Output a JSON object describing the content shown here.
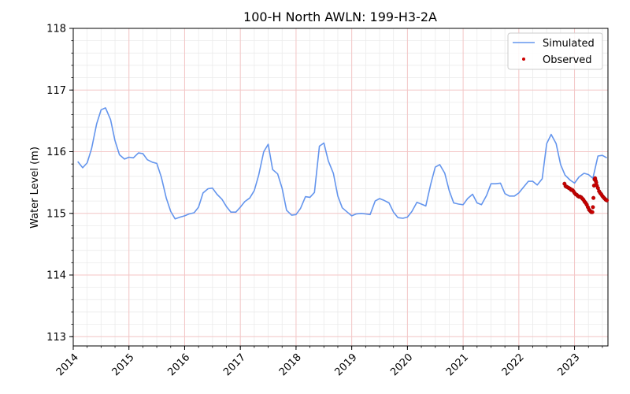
{
  "chart_data": {
    "type": "line",
    "title": "100-H North AWLN: 199-H3-2A",
    "xlabel": "",
    "ylabel": "Water Level (m)",
    "xlim": [
      2014.0,
      2023.6
    ],
    "ylim": [
      112.85,
      118.0
    ],
    "x_ticks": [
      "2014",
      "2015",
      "2016",
      "2017",
      "2018",
      "2019",
      "2020",
      "2021",
      "2022",
      "2023"
    ],
    "y_ticks": [
      113,
      114,
      115,
      116,
      117,
      118
    ],
    "grid": true,
    "legend_position": "top-right",
    "colors": {
      "simulated": "#6495ED",
      "observed": "#cc0000",
      "major_grid": "#f4c6c6",
      "minor_grid": "#ebebeb"
    },
    "series": [
      {
        "name": "Simulated",
        "style": "line",
        "points": [
          [
            2014.08,
            115.84
          ],
          [
            2014.17,
            115.74
          ],
          [
            2014.25,
            115.82
          ],
          [
            2014.33,
            116.05
          ],
          [
            2014.42,
            116.45
          ],
          [
            2014.5,
            116.68
          ],
          [
            2014.58,
            116.71
          ],
          [
            2014.67,
            116.52
          ],
          [
            2014.75,
            116.18
          ],
          [
            2014.83,
            115.95
          ],
          [
            2014.92,
            115.88
          ],
          [
            2015.0,
            115.91
          ],
          [
            2015.08,
            115.9
          ],
          [
            2015.17,
            115.98
          ],
          [
            2015.25,
            115.97
          ],
          [
            2015.33,
            115.87
          ],
          [
            2015.42,
            115.83
          ],
          [
            2015.5,
            115.81
          ],
          [
            2015.58,
            115.59
          ],
          [
            2015.67,
            115.25
          ],
          [
            2015.75,
            115.03
          ],
          [
            2015.83,
            114.91
          ],
          [
            2015.92,
            114.94
          ],
          [
            2016.0,
            114.96
          ],
          [
            2016.08,
            114.99
          ],
          [
            2016.17,
            115.01
          ],
          [
            2016.25,
            115.1
          ],
          [
            2016.33,
            115.33
          ],
          [
            2016.42,
            115.4
          ],
          [
            2016.5,
            115.41
          ],
          [
            2016.58,
            115.31
          ],
          [
            2016.67,
            115.23
          ],
          [
            2016.75,
            115.11
          ],
          [
            2016.83,
            115.02
          ],
          [
            2016.92,
            115.02
          ],
          [
            2017.0,
            115.1
          ],
          [
            2017.08,
            115.19
          ],
          [
            2017.17,
            115.25
          ],
          [
            2017.25,
            115.37
          ],
          [
            2017.33,
            115.62
          ],
          [
            2017.42,
            116.0
          ],
          [
            2017.5,
            116.12
          ],
          [
            2017.58,
            115.71
          ],
          [
            2017.67,
            115.64
          ],
          [
            2017.75,
            115.41
          ],
          [
            2017.83,
            115.05
          ],
          [
            2017.92,
            114.97
          ],
          [
            2018.0,
            114.98
          ],
          [
            2018.08,
            115.08
          ],
          [
            2018.17,
            115.27
          ],
          [
            2018.25,
            115.26
          ],
          [
            2018.33,
            115.34
          ],
          [
            2018.42,
            116.09
          ],
          [
            2018.5,
            116.14
          ],
          [
            2018.58,
            115.85
          ],
          [
            2018.67,
            115.65
          ],
          [
            2018.75,
            115.28
          ],
          [
            2018.83,
            115.09
          ],
          [
            2018.92,
            115.02
          ],
          [
            2019.0,
            114.96
          ],
          [
            2019.08,
            114.99
          ],
          [
            2019.17,
            115.0
          ],
          [
            2019.25,
            114.99
          ],
          [
            2019.33,
            114.98
          ],
          [
            2019.42,
            115.2
          ],
          [
            2019.5,
            115.24
          ],
          [
            2019.58,
            115.21
          ],
          [
            2019.67,
            115.17
          ],
          [
            2019.75,
            115.02
          ],
          [
            2019.83,
            114.93
          ],
          [
            2019.92,
            114.92
          ],
          [
            2020.0,
            114.94
          ],
          [
            2020.08,
            115.03
          ],
          [
            2020.17,
            115.18
          ],
          [
            2020.25,
            115.15
          ],
          [
            2020.33,
            115.12
          ],
          [
            2020.42,
            115.48
          ],
          [
            2020.5,
            115.75
          ],
          [
            2020.58,
            115.79
          ],
          [
            2020.67,
            115.65
          ],
          [
            2020.75,
            115.37
          ],
          [
            2020.83,
            115.17
          ],
          [
            2020.92,
            115.15
          ],
          [
            2021.0,
            115.14
          ],
          [
            2021.08,
            115.24
          ],
          [
            2021.17,
            115.31
          ],
          [
            2021.25,
            115.17
          ],
          [
            2021.33,
            115.14
          ],
          [
            2021.42,
            115.29
          ],
          [
            2021.5,
            115.48
          ],
          [
            2021.58,
            115.48
          ],
          [
            2021.67,
            115.49
          ],
          [
            2021.75,
            115.32
          ],
          [
            2021.83,
            115.28
          ],
          [
            2021.92,
            115.28
          ],
          [
            2022.0,
            115.33
          ],
          [
            2022.08,
            115.42
          ],
          [
            2022.17,
            115.52
          ],
          [
            2022.25,
            115.52
          ],
          [
            2022.33,
            115.46
          ],
          [
            2022.42,
            115.56
          ],
          [
            2022.5,
            116.13
          ],
          [
            2022.58,
            116.28
          ],
          [
            2022.67,
            116.13
          ],
          [
            2022.75,
            115.79
          ],
          [
            2022.83,
            115.62
          ],
          [
            2022.92,
            115.54
          ],
          [
            2023.0,
            115.49
          ],
          [
            2023.08,
            115.59
          ],
          [
            2023.17,
            115.65
          ],
          [
            2023.25,
            115.63
          ],
          [
            2023.33,
            115.57
          ],
          [
            2023.42,
            115.93
          ],
          [
            2023.5,
            115.94
          ],
          [
            2023.58,
            115.9
          ]
        ]
      },
      {
        "name": "Observed",
        "style": "scatter",
        "points": [
          [
            2022.82,
            115.48
          ],
          [
            2022.84,
            115.44
          ],
          [
            2022.86,
            115.43
          ],
          [
            2022.88,
            115.42
          ],
          [
            2022.9,
            115.41
          ],
          [
            2022.92,
            115.4
          ],
          [
            2022.94,
            115.38
          ],
          [
            2022.96,
            115.38
          ],
          [
            2022.98,
            115.36
          ],
          [
            2023.0,
            115.33
          ],
          [
            2023.02,
            115.31
          ],
          [
            2023.04,
            115.3
          ],
          [
            2023.06,
            115.28
          ],
          [
            2023.08,
            115.27
          ],
          [
            2023.1,
            115.27
          ],
          [
            2023.12,
            115.26
          ],
          [
            2023.14,
            115.24
          ],
          [
            2023.16,
            115.22
          ],
          [
            2023.18,
            115.19
          ],
          [
            2023.2,
            115.17
          ],
          [
            2023.22,
            115.14
          ],
          [
            2023.24,
            115.1
          ],
          [
            2023.26,
            115.06
          ],
          [
            2023.28,
            115.04
          ],
          [
            2023.3,
            115.02
          ],
          [
            2023.32,
            115.02
          ],
          [
            2023.33,
            115.1
          ],
          [
            2023.34,
            115.25
          ],
          [
            2023.35,
            115.45
          ],
          [
            2023.36,
            115.55
          ],
          [
            2023.37,
            115.57
          ],
          [
            2023.38,
            115.53
          ],
          [
            2023.39,
            115.5
          ],
          [
            2023.4,
            115.45
          ],
          [
            2023.42,
            115.41
          ],
          [
            2023.44,
            115.36
          ],
          [
            2023.46,
            115.33
          ],
          [
            2023.48,
            115.31
          ],
          [
            2023.5,
            115.28
          ],
          [
            2023.52,
            115.26
          ],
          [
            2023.54,
            115.24
          ],
          [
            2023.56,
            115.22
          ],
          [
            2023.58,
            115.21
          ]
        ]
      }
    ]
  }
}
